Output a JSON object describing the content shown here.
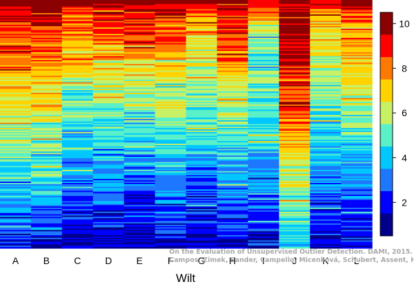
{
  "chart_data": {
    "type": "heatmap",
    "xlabel": "Wilt",
    "categories": [
      "A",
      "B",
      "C",
      "D",
      "E",
      "F",
      "G",
      "H",
      "I",
      "J",
      "K",
      "L"
    ],
    "colorbar": {
      "min": 0.5,
      "max": 10.5,
      "ticks": [
        2,
        4,
        6,
        8,
        10
      ],
      "bins": [
        {
          "from": 0.5,
          "to": 1.5,
          "color": "#00008B"
        },
        {
          "from": 1.5,
          "to": 2.5,
          "color": "#0000FF"
        },
        {
          "from": 2.5,
          "to": 3.5,
          "color": "#1E78FF"
        },
        {
          "from": 3.5,
          "to": 4.5,
          "color": "#00C8FF"
        },
        {
          "from": 4.5,
          "to": 5.5,
          "color": "#5AF0C8"
        },
        {
          "from": 5.5,
          "to": 6.5,
          "color": "#C8F064"
        },
        {
          "from": 6.5,
          "to": 7.5,
          "color": "#FFD200"
        },
        {
          "from": 7.5,
          "to": 8.5,
          "color": "#FF7800"
        },
        {
          "from": 8.5,
          "to": 9.5,
          "color": "#FF0000"
        },
        {
          "from": 9.5,
          "to": 10.5,
          "color": "#8B0000"
        }
      ]
    },
    "profiles": [
      [
        [
          0,
          10
        ],
        [
          0.06,
          9.3
        ],
        [
          0.16,
          8.4
        ],
        [
          0.28,
          7.6
        ],
        [
          0.42,
          6.6
        ],
        [
          0.55,
          5.6
        ],
        [
          0.68,
          4.7
        ],
        [
          0.82,
          3.5
        ],
        [
          0.92,
          2.6
        ],
        [
          1,
          1.3
        ]
      ],
      [
        [
          0,
          10
        ],
        [
          0.06,
          9.2
        ],
        [
          0.16,
          8.5
        ],
        [
          0.28,
          7.5
        ],
        [
          0.42,
          6.7
        ],
        [
          0.55,
          5.6
        ],
        [
          0.68,
          4.8
        ],
        [
          0.82,
          3.6
        ],
        [
          0.92,
          2.7
        ],
        [
          1,
          1.4
        ]
      ],
      [
        [
          0,
          9.8
        ],
        [
          0.08,
          8.3
        ],
        [
          0.2,
          7.3
        ],
        [
          0.32,
          6
        ],
        [
          0.45,
          4.7
        ],
        [
          0.58,
          3.9
        ],
        [
          0.72,
          3.1
        ],
        [
          0.85,
          2.2
        ],
        [
          1,
          1.1
        ]
      ],
      [
        [
          0,
          9.7
        ],
        [
          0.08,
          8.7
        ],
        [
          0.18,
          7.6
        ],
        [
          0.3,
          6.3
        ],
        [
          0.42,
          5.4
        ],
        [
          0.55,
          4.5
        ],
        [
          0.68,
          3.6
        ],
        [
          0.82,
          2.6
        ],
        [
          1,
          1.2
        ]
      ],
      [
        [
          0,
          9.8
        ],
        [
          0.08,
          8.9
        ],
        [
          0.18,
          7.8
        ],
        [
          0.3,
          6.5
        ],
        [
          0.42,
          5.3
        ],
        [
          0.55,
          4.3
        ],
        [
          0.68,
          3.3
        ],
        [
          0.82,
          2.3
        ],
        [
          1,
          1.1
        ]
      ],
      [
        [
          0,
          9.9
        ],
        [
          0.06,
          9
        ],
        [
          0.16,
          8.1
        ],
        [
          0.28,
          7
        ],
        [
          0.42,
          5.9
        ],
        [
          0.55,
          4.9
        ],
        [
          0.68,
          3.9
        ],
        [
          0.82,
          2.9
        ],
        [
          1,
          1.5
        ]
      ],
      [
        [
          0,
          9.7
        ],
        [
          0.08,
          7.6
        ],
        [
          0.2,
          6.4
        ],
        [
          0.32,
          5.6
        ],
        [
          0.45,
          5
        ],
        [
          0.58,
          4.2
        ],
        [
          0.72,
          3.1
        ],
        [
          0.85,
          2.2
        ],
        [
          1,
          1.3
        ]
      ],
      [
        [
          0,
          9.6
        ],
        [
          0.1,
          9
        ],
        [
          0.22,
          7.9
        ],
        [
          0.35,
          6.6
        ],
        [
          0.48,
          5.4
        ],
        [
          0.6,
          4.3
        ],
        [
          0.75,
          3.3
        ],
        [
          0.88,
          2.4
        ],
        [
          1,
          1.4
        ]
      ],
      [
        [
          0,
          9
        ],
        [
          0.12,
          5.5
        ],
        [
          0.3,
          5
        ],
        [
          0.5,
          4.5
        ],
        [
          0.7,
          3.6
        ],
        [
          0.85,
          2.6
        ],
        [
          1,
          1.6
        ]
      ],
      [
        [
          0,
          10.2
        ],
        [
          0.15,
          9.8
        ],
        [
          0.3,
          9.2
        ],
        [
          0.45,
          8.4
        ],
        [
          0.58,
          7.2
        ],
        [
          0.7,
          6.1
        ],
        [
          0.82,
          5.3
        ],
        [
          0.92,
          4.6
        ],
        [
          1,
          4
        ]
      ],
      [
        [
          0,
          9.4
        ],
        [
          0.08,
          7.3
        ],
        [
          0.2,
          6.3
        ],
        [
          0.32,
          5.6
        ],
        [
          0.45,
          4.9
        ],
        [
          0.58,
          4.2
        ],
        [
          0.72,
          3.4
        ],
        [
          0.85,
          2.5
        ],
        [
          1,
          1.3
        ]
      ],
      [
        [
          0,
          9.6
        ],
        [
          0.06,
          8.4
        ],
        [
          0.16,
          7.6
        ],
        [
          0.28,
          6.7
        ],
        [
          0.42,
          5.7
        ],
        [
          0.55,
          4.8
        ],
        [
          0.68,
          3.9
        ],
        [
          0.82,
          2.9
        ],
        [
          1,
          1.4
        ]
      ]
    ]
  },
  "watermark": {
    "line1": "On the Evaluation of Unsupervised Outlier Detection. DAMI, 2015.",
    "line2": "Campos, Zimek, Sander, Campello, Micenková, Schubert, Assent, Houle"
  }
}
